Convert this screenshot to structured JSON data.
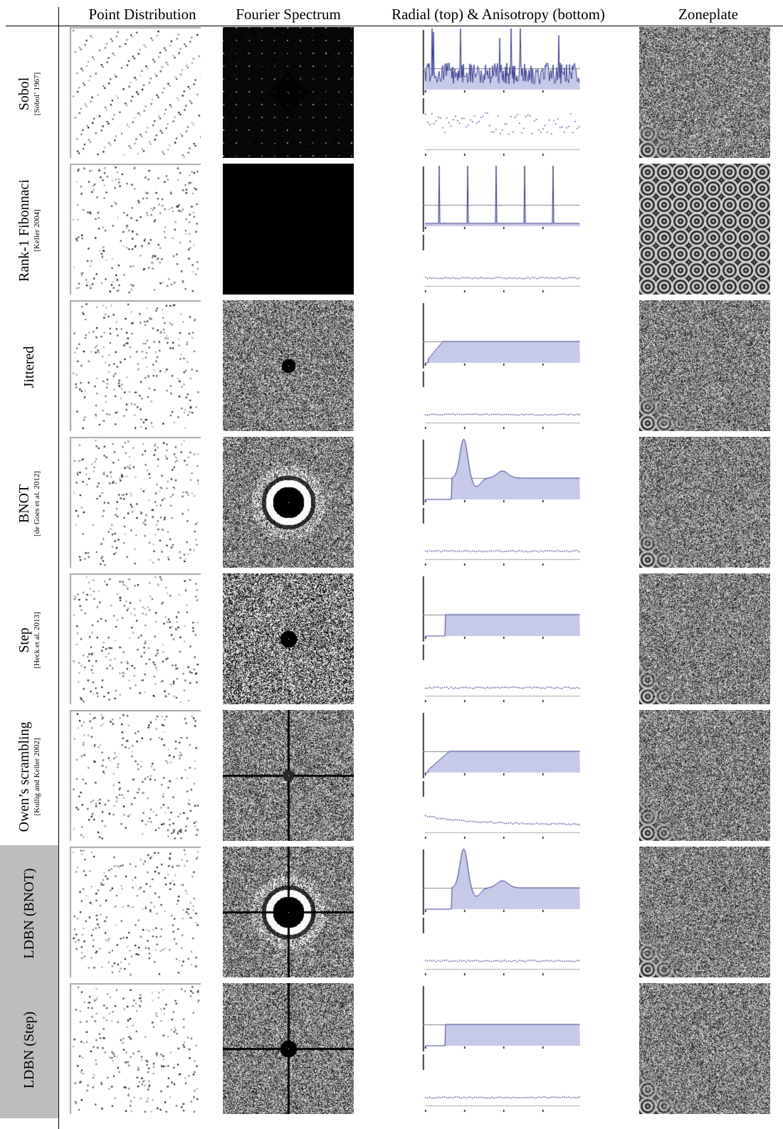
{
  "headers": {
    "col1": "Point Distribution",
    "col2": "Fourier Spectrum",
    "col3": "Radial (top) & Anisotropy (bottom)",
    "col4": "Zoneplate"
  },
  "rows": [
    {
      "name": "Sobol",
      "citation": "[Sobol’ 1967]",
      "shaded": false,
      "spectrum": "lattice",
      "radial": "spiky",
      "zone": "noisy-rings"
    },
    {
      "name": "Rank-1 Fibonnaci",
      "citation": "[Keller 2004]",
      "shaded": false,
      "spectrum": "dark",
      "radial": "fib",
      "zone": "rings-full"
    },
    {
      "name": "Jittered",
      "citation": "",
      "shaded": false,
      "spectrum": "noise-dot",
      "radial": "ramp",
      "zone": "noise-rings"
    },
    {
      "name": "BNOT",
      "citation": "[de Goes et al. 2012]",
      "shaded": false,
      "spectrum": "ring",
      "radial": "peak",
      "zone": "noise-rings"
    },
    {
      "name": "Step",
      "citation": "[Heck et al. 2013]",
      "shaded": false,
      "spectrum": "noise-dark",
      "radial": "step",
      "zone": "noise-rings"
    },
    {
      "name": "Owen’s scrambling",
      "citation": "[Kollig and Keller 2002]",
      "shaded": false,
      "spectrum": "cross",
      "radial": "ramp2",
      "zone": "noise-rings"
    },
    {
      "name": "LDBN (BNOT)",
      "citation": "",
      "shaded": true,
      "spectrum": "ring-cross",
      "radial": "peak",
      "zone": "noise-rings"
    },
    {
      "name": "LDBN (Step)",
      "citation": "",
      "shaded": true,
      "spectrum": "step-cross",
      "radial": "step",
      "zone": "noise-rings"
    }
  ],
  "style": {
    "radial_fill": "#c7c9e8",
    "radial_line": "#3b3f8f",
    "spectrum_bg": "#000000",
    "label_shade": "#bdbdbd"
  }
}
